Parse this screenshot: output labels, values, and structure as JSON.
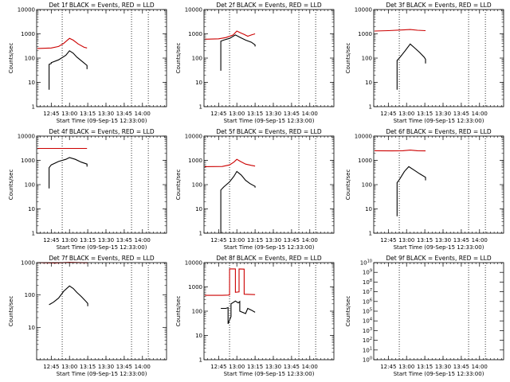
{
  "colors": {
    "events": "#000000",
    "lld": "#cc0000",
    "axis": "#000000"
  },
  "chart_data": [
    {
      "type": "line",
      "title": "Det 1f BLACK = Events, RED = LLD",
      "xlabel": "Start Time (09-Sep-15 12:33:00)",
      "ylabel": "Counts/sec",
      "xlim": [
        12.55,
        14.33
      ],
      "ylim": [
        1,
        10000
      ],
      "yscale": "log",
      "x_ticks": [
        12.75,
        13.0,
        13.25,
        13.5,
        13.75,
        14.0
      ],
      "x_tick_labels": [
        "12:45",
        "13:00",
        "13:15",
        "13:30",
        "13:45",
        "14:00"
      ],
      "y_tick_labels": [
        "1",
        "10",
        "100",
        "1000",
        "10000"
      ],
      "vlines": [
        12.9,
        13.85,
        14.08
      ],
      "series": [
        {
          "name": "Events",
          "color": "#000000",
          "x": [
            12.72,
            12.72,
            12.75,
            12.75,
            12.85,
            12.95,
            13.0,
            13.05,
            13.1,
            13.18,
            13.24,
            13.24
          ],
          "y": [
            5,
            55,
            60,
            65,
            85,
            130,
            200,
            160,
            110,
            70,
            50,
            35
          ]
        },
        {
          "name": "LLD",
          "color": "#cc0000",
          "x": [
            12.56,
            12.75,
            12.85,
            12.92,
            13.0,
            13.05,
            13.12,
            13.2,
            13.24
          ],
          "y": [
            250,
            260,
            300,
            400,
            650,
            550,
            380,
            280,
            260
          ]
        }
      ]
    },
    {
      "type": "line",
      "title": "Det 2f BLACK = Events, RED = LLD",
      "xlabel": "Start Time (09-Sep-15 12:33:00)",
      "ylabel": "Counts/sec",
      "xlim": [
        12.55,
        14.33
      ],
      "ylim": [
        1,
        10000
      ],
      "yscale": "log",
      "x_ticks": [
        12.75,
        13.0,
        13.25,
        13.5,
        13.75,
        14.0
      ],
      "x_tick_labels": [
        "12:45",
        "13:00",
        "13:15",
        "13:30",
        "13:45",
        "14:00"
      ],
      "y_tick_labels": [
        "1",
        "10",
        "100",
        "1000",
        "10000"
      ],
      "vlines": [
        12.9,
        13.85,
        14.08
      ],
      "series": [
        {
          "name": "Events",
          "color": "#000000",
          "x": [
            12.78,
            12.78,
            12.82,
            12.9,
            12.98,
            13.05,
            13.12,
            13.2,
            13.25,
            13.25
          ],
          "y": [
            30,
            500,
            550,
            650,
            900,
            700,
            550,
            450,
            350,
            300
          ]
        },
        {
          "name": "LLD",
          "color": "#cc0000",
          "x": [
            12.56,
            12.75,
            12.85,
            12.95,
            13.0,
            13.05,
            13.1,
            13.15,
            13.2,
            13.25
          ],
          "y": [
            600,
            620,
            700,
            900,
            1300,
            1100,
            950,
            800,
            900,
            1000
          ]
        }
      ]
    },
    {
      "type": "line",
      "title": "Det 3f BLACK = Events, RED = LLD",
      "xlabel": "Start Time (09-Sep-15 12:33:00)",
      "ylabel": "Counts/sec",
      "xlim": [
        12.55,
        14.33
      ],
      "ylim": [
        1,
        10000
      ],
      "yscale": "log",
      "x_ticks": [
        12.75,
        13.0,
        13.25,
        13.5,
        13.75,
        14.0
      ],
      "x_tick_labels": [
        "12:45",
        "13:00",
        "13:15",
        "13:30",
        "13:45",
        "14:00"
      ],
      "y_tick_labels": [
        "1",
        "10",
        "100",
        "1000",
        "10000"
      ],
      "vlines": [
        12.9,
        13.85,
        14.08
      ],
      "series": [
        {
          "name": "Events",
          "color": "#000000",
          "x": [
            12.87,
            12.87,
            12.9,
            12.98,
            13.05,
            13.1,
            13.18,
            13.24,
            13.26,
            13.26
          ],
          "y": [
            5,
            80,
            100,
            200,
            380,
            280,
            170,
            110,
            90,
            60
          ]
        },
        {
          "name": "LLD",
          "color": "#cc0000",
          "x": [
            12.56,
            12.75,
            12.95,
            13.05,
            13.15,
            13.26
          ],
          "y": [
            1300,
            1350,
            1450,
            1500,
            1400,
            1350
          ]
        }
      ]
    },
    {
      "type": "line",
      "title": "Det 4f BLACK = Events, RED = LLD",
      "xlabel": "Start Time (09-Sep-15 12:33:00)",
      "ylabel": "Counts/sec",
      "xlim": [
        12.55,
        14.33
      ],
      "ylim": [
        1,
        10000
      ],
      "yscale": "log",
      "x_ticks": [
        12.75,
        13.0,
        13.25,
        13.5,
        13.75,
        14.0
      ],
      "x_tick_labels": [
        "12:45",
        "13:00",
        "13:15",
        "13:30",
        "13:45",
        "14:00"
      ],
      "y_tick_labels": [
        "1",
        "10",
        "100",
        "1000",
        "10000"
      ],
      "vlines": [
        12.9,
        13.85,
        14.08
      ],
      "series": [
        {
          "name": "Events",
          "color": "#000000",
          "x": [
            12.72,
            12.72,
            12.75,
            12.85,
            12.95,
            13.0,
            13.08,
            13.16,
            13.24,
            13.24
          ],
          "y": [
            70,
            500,
            650,
            900,
            1100,
            1300,
            1100,
            850,
            700,
            550
          ]
        },
        {
          "name": "LLD",
          "color": "#cc0000",
          "x": [
            12.56,
            13.24
          ],
          "y": [
            3100,
            3100
          ]
        }
      ]
    },
    {
      "type": "line",
      "title": "Det 5f BLACK = Events, RED = LLD",
      "xlabel": "Start Time (09-Sep-15 12:33:00)",
      "ylabel": "Counts/sec",
      "xlim": [
        12.55,
        14.33
      ],
      "ylim": [
        1,
        10000
      ],
      "yscale": "log",
      "x_ticks": [
        12.75,
        13.0,
        13.25,
        13.5,
        13.75,
        14.0
      ],
      "x_tick_labels": [
        "12:45",
        "13:00",
        "13:15",
        "13:30",
        "13:45",
        "14:00"
      ],
      "y_tick_labels": [
        "1",
        "10",
        "100",
        "1000",
        "10000"
      ],
      "vlines": [
        12.9,
        13.85,
        14.08
      ],
      "series": [
        {
          "name": "Events",
          "color": "#000000",
          "x": [
            12.78,
            12.78,
            12.82,
            12.9,
            12.96,
            13.0,
            13.06,
            13.12,
            13.18,
            13.25,
            13.25
          ],
          "y": [
            1,
            60,
            80,
            130,
            220,
            350,
            250,
            150,
            110,
            85,
            75
          ]
        },
        {
          "name": "LLD",
          "color": "#cc0000",
          "x": [
            12.56,
            12.8,
            12.9,
            12.96,
            13.0,
            13.05,
            13.12,
            13.2,
            13.25
          ],
          "y": [
            550,
            560,
            650,
            850,
            1100,
            900,
            700,
            620,
            580
          ]
        }
      ]
    },
    {
      "type": "line",
      "title": "Det 6f BLACK = Events, RED = LLD",
      "xlabel": "Start Time (09-Sep-15 12:33:00)",
      "ylabel": "Counts/sec",
      "xlim": [
        12.55,
        14.33
      ],
      "ylim": [
        1,
        10000
      ],
      "yscale": "log",
      "x_ticks": [
        12.75,
        13.0,
        13.25,
        13.5,
        13.75,
        14.0
      ],
      "x_tick_labels": [
        "12:45",
        "13:00",
        "13:15",
        "13:30",
        "13:45",
        "14:00"
      ],
      "y_tick_labels": [
        "1",
        "10",
        "100",
        "1000",
        "10000"
      ],
      "vlines": [
        12.9,
        13.85,
        14.08
      ],
      "series": [
        {
          "name": "Events",
          "color": "#000000",
          "x": [
            12.87,
            12.87,
            12.9,
            12.97,
            13.03,
            13.1,
            13.18,
            13.26,
            13.26
          ],
          "y": [
            5,
            120,
            160,
            350,
            550,
            400,
            280,
            200,
            150
          ]
        },
        {
          "name": "LLD",
          "color": "#cc0000",
          "x": [
            12.56,
            12.8,
            12.95,
            13.05,
            13.15,
            13.26
          ],
          "y": [
            2500,
            2450,
            2500,
            2650,
            2500,
            2450
          ]
        }
      ]
    },
    {
      "type": "line",
      "title": "Det 7f BLACK = Events, RED = LLD",
      "xlabel": "Start Time (09-Sep-15 12:33:00)",
      "ylabel": "Counts/sec",
      "xlim": [
        12.55,
        14.33
      ],
      "ylim": [
        1,
        1000
      ],
      "yscale": "log",
      "x_ticks": [
        12.75,
        13.0,
        13.25,
        13.5,
        13.75,
        14.0
      ],
      "x_tick_labels": [
        "12:45",
        "13:00",
        "13:15",
        "13:30",
        "13:45",
        "14:00"
      ],
      "y_tick_labels": [
        "10",
        "100",
        "1000"
      ],
      "vlines": [
        12.9,
        13.85,
        14.08
      ],
      "series": [
        {
          "name": "Events",
          "color": "#000000",
          "x": [
            12.72,
            12.78,
            12.85,
            12.92,
            13.0,
            13.05,
            13.1,
            13.16,
            13.22,
            13.25,
            13.25
          ],
          "y": [
            50,
            60,
            80,
            130,
            190,
            160,
            120,
            90,
            65,
            55,
            45
          ]
        },
        {
          "name": "LLD",
          "color": "#cc0000",
          "x": [
            12.56,
            12.8,
            13.0,
            13.25
          ],
          "y": [
            1000,
            980,
            1020,
            990
          ]
        }
      ]
    },
    {
      "type": "line",
      "title": "Det 8f BLACK = Events, RED = LLD",
      "xlabel": "Start Time (09-Sep-15 12:33:00)",
      "ylabel": "Counts/sec",
      "xlim": [
        12.55,
        14.33
      ],
      "ylim": [
        1,
        10000
      ],
      "yscale": "log",
      "x_ticks": [
        12.75,
        13.0,
        13.25,
        13.5,
        13.75,
        14.0
      ],
      "x_tick_labels": [
        "12:45",
        "13:00",
        "13:15",
        "13:30",
        "13:45",
        "14:00"
      ],
      "y_tick_labels": [
        "1",
        "10",
        "100",
        "1000",
        "10000"
      ],
      "vlines": [
        12.9,
        13.85,
        14.08
      ],
      "series": [
        {
          "name": "Events",
          "color": "#000000",
          "x": [
            12.78,
            12.85,
            12.88,
            12.88,
            12.92,
            12.92,
            12.98,
            13.02,
            13.04,
            13.04,
            13.12,
            13.15,
            13.2,
            13.25
          ],
          "y": [
            130,
            130,
            140,
            30,
            60,
            200,
            260,
            220,
            250,
            100,
            80,
            130,
            110,
            90
          ]
        },
        {
          "name": "LLD",
          "color": "#cc0000",
          "x": [
            12.56,
            12.8,
            12.88,
            12.9,
            12.9,
            12.98,
            12.98,
            13.03,
            13.03,
            13.1,
            13.1,
            13.25
          ],
          "y": [
            450,
            450,
            460,
            470,
            5500,
            5500,
            600,
            620,
            5500,
            5400,
            500,
            480
          ]
        }
      ]
    },
    {
      "type": "line",
      "title": "Det 9f BLACK = Events, RED = LLD",
      "xlabel": "Start Time (09-Sep-15 12:33:00)",
      "ylabel": "Counts/sec",
      "xlim": [
        12.55,
        14.33
      ],
      "ylim": [
        1,
        10000000000
      ],
      "yscale": "log",
      "x_ticks": [
        12.75,
        13.0,
        13.25,
        13.5,
        13.75,
        14.0
      ],
      "x_tick_labels": [
        "12:45",
        "13:00",
        "13:15",
        "13:30",
        "13:45",
        "14:00"
      ],
      "y_tick_labels": [
        "10^0",
        "10^1",
        "10^2",
        "10^3",
        "10^4",
        "10^5",
        "10^6",
        "10^7",
        "10^8",
        "10^9",
        "10^10"
      ],
      "vlines": [
        12.9,
        13.85,
        14.08
      ],
      "series": []
    }
  ]
}
